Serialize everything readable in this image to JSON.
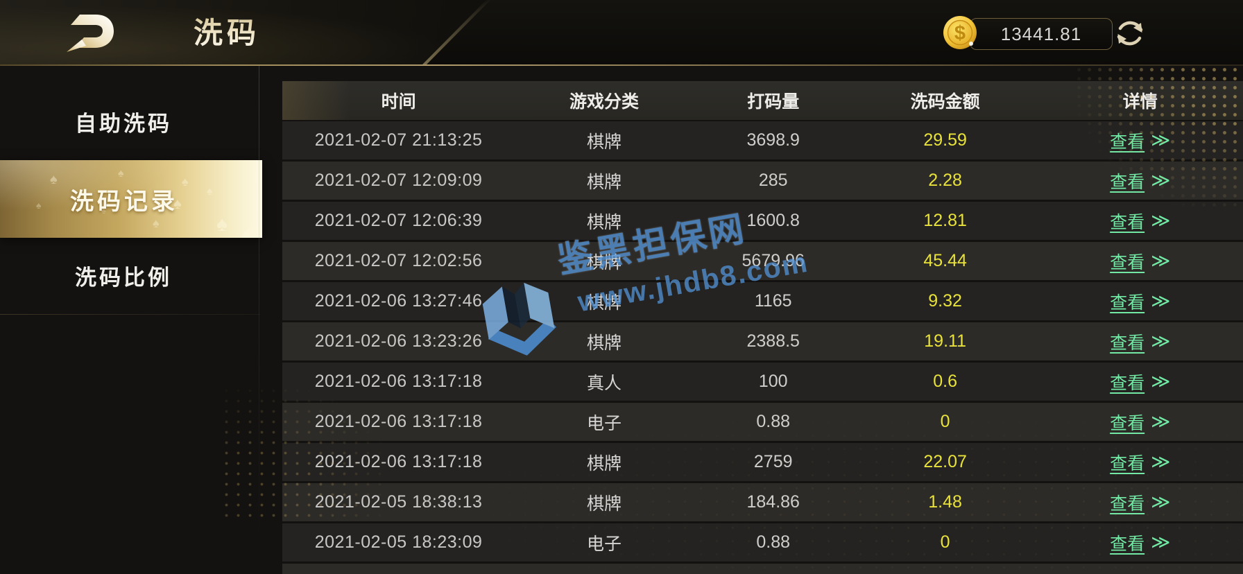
{
  "header": {
    "title": "洗码",
    "balance": "13441.81"
  },
  "sidebar": {
    "items": [
      {
        "label": "自助洗码",
        "selected": false
      },
      {
        "label": "洗码记录",
        "selected": true
      },
      {
        "label": "洗码比例",
        "selected": false
      }
    ]
  },
  "table": {
    "columns": [
      "时间",
      "游戏分类",
      "打码量",
      "洗码金额",
      "详情"
    ],
    "action_label": "查看",
    "action_chevron": "≫",
    "rows": [
      {
        "time": "2021-02-07 21:13:25",
        "category": "棋牌",
        "wager": "3698.9",
        "rebate": "29.59"
      },
      {
        "time": "2021-02-07 12:09:09",
        "category": "棋牌",
        "wager": "285",
        "rebate": "2.28"
      },
      {
        "time": "2021-02-07 12:06:39",
        "category": "棋牌",
        "wager": "1600.8",
        "rebate": "12.81"
      },
      {
        "time": "2021-02-07 12:02:56",
        "category": "棋牌",
        "wager": "5679.96",
        "rebate": "45.44"
      },
      {
        "time": "2021-02-06 13:27:46",
        "category": "棋牌",
        "wager": "1165",
        "rebate": "9.32"
      },
      {
        "time": "2021-02-06 13:23:26",
        "category": "棋牌",
        "wager": "2388.5",
        "rebate": "19.11"
      },
      {
        "time": "2021-02-06 13:17:18",
        "category": "真人",
        "wager": "100",
        "rebate": "0.6"
      },
      {
        "time": "2021-02-06 13:17:18",
        "category": "电子",
        "wager": "0.88",
        "rebate": "0"
      },
      {
        "time": "2021-02-06 13:17:18",
        "category": "棋牌",
        "wager": "2759",
        "rebate": "22.07"
      },
      {
        "time": "2021-02-05 18:38:13",
        "category": "棋牌",
        "wager": "184.86",
        "rebate": "1.48"
      },
      {
        "time": "2021-02-05 18:23:09",
        "category": "电子",
        "wager": "0.88",
        "rebate": "0"
      }
    ]
  },
  "watermark": {
    "site_name": "鉴黑担保网",
    "site_url": "www.jhdb8.com"
  },
  "colors": {
    "accent_gold": "#c4a75f",
    "rebate_yellow": "#e8e23a",
    "action_green": "#72e9a4",
    "watermark_blue": "#5292d6"
  }
}
